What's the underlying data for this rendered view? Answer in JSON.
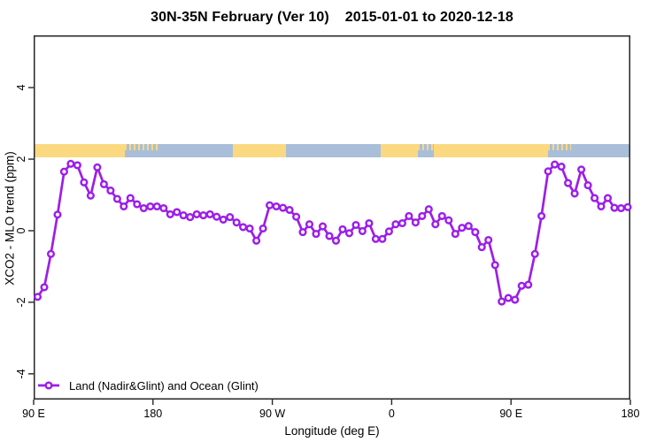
{
  "title": {
    "main": "30N-35N February (Ver 10)",
    "dates": "2015-01-01 to 2020-12-18"
  },
  "chart_data": {
    "type": "line",
    "title": "30N-35N February (Ver 10)  2015-01-01 to 2020-12-18",
    "xlabel": "Longitude (deg E)",
    "ylabel": "XCO2 - MLO trend (ppm)",
    "x_range": [
      90,
      540
    ],
    "y_range": [
      -4.72,
      5.46
    ],
    "grid": false,
    "x_ticks": [
      {
        "value": 90,
        "label": "90 E"
      },
      {
        "value": 180,
        "label": "180"
      },
      {
        "value": 270,
        "label": "90 W"
      },
      {
        "value": 360,
        "label": "0"
      },
      {
        "value": 450,
        "label": "90 E"
      },
      {
        "value": 540,
        "label": "180"
      }
    ],
    "y_ticks": [
      {
        "value": 4,
        "label": "4"
      },
      {
        "value": 2,
        "label": "2"
      },
      {
        "value": 0,
        "label": "0"
      },
      {
        "value": -2,
        "label": "-2"
      },
      {
        "value": -4,
        "label": "-4"
      }
    ],
    "legend": {
      "position": "bottom-left",
      "label": "Land (Nadir&Glint) and Ocean (Glint)"
    },
    "series": [
      {
        "name": "Land (Nadir&Glint) and Ocean (Glint)",
        "color": "#9C1EE9",
        "marker": "open-circle",
        "x": [
          93,
          98,
          103,
          108,
          113,
          118,
          123,
          128,
          133,
          138,
          143,
          148,
          153,
          158,
          163,
          168,
          173,
          178,
          183,
          188,
          193,
          198,
          203,
          208,
          213,
          218,
          223,
          228,
          233,
          238,
          243,
          248,
          253,
          258,
          263,
          268,
          273,
          278,
          283,
          288,
          293,
          298,
          303,
          308,
          313,
          318,
          323,
          328,
          333,
          338,
          343,
          348,
          353,
          358,
          363,
          368,
          373,
          378,
          383,
          388,
          393,
          398,
          403,
          408,
          413,
          418,
          423,
          428,
          433,
          438,
          443,
          448,
          453,
          458,
          463,
          468,
          473,
          478,
          483,
          488,
          493,
          498,
          503,
          508,
          513,
          518,
          523,
          528,
          533,
          538
        ],
        "y": [
          -1.85,
          -1.58,
          -0.65,
          0.45,
          1.65,
          1.87,
          1.83,
          1.35,
          0.98,
          1.77,
          1.3,
          1.12,
          0.89,
          0.68,
          0.91,
          0.74,
          0.63,
          0.68,
          0.68,
          0.63,
          0.46,
          0.52,
          0.43,
          0.38,
          0.46,
          0.43,
          0.46,
          0.39,
          0.31,
          0.38,
          0.23,
          0.1,
          0.06,
          -0.28,
          0.06,
          0.71,
          0.68,
          0.64,
          0.58,
          0.39,
          -0.04,
          0.18,
          -0.09,
          0.12,
          -0.15,
          -0.28,
          0.04,
          -0.07,
          0.16,
          -0.01,
          0.21,
          -0.23,
          -0.23,
          -0.02,
          0.18,
          0.21,
          0.41,
          0.23,
          0.41,
          0.6,
          0.18,
          0.41,
          0.29,
          -0.09,
          0.08,
          0.13,
          -0.04,
          -0.46,
          -0.26,
          -0.96,
          -1.98,
          -1.88,
          -1.93,
          -1.54,
          -1.51,
          -0.65,
          0.41,
          1.66,
          1.85,
          1.79,
          1.33,
          1.04,
          1.71,
          1.27,
          0.91,
          0.68,
          0.91,
          0.64,
          0.63,
          0.66
        ]
      }
    ],
    "map_band": {
      "description": "land-ocean strip near y=2.2",
      "ocean_color": "#A9BED9",
      "land_color": "#FBD980",
      "segments": [
        {
          "x0": 90,
          "x1": 159,
          "type": "land"
        },
        {
          "x0": 159,
          "x1": 185,
          "type": "mixed"
        },
        {
          "x0": 185,
          "x1": 240,
          "type": "ocean"
        },
        {
          "x0": 240,
          "x1": 280,
          "type": "land"
        },
        {
          "x0": 280,
          "x1": 352,
          "type": "ocean"
        },
        {
          "x0": 352,
          "x1": 380,
          "type": "land"
        },
        {
          "x0": 380,
          "x1": 392,
          "type": "mixed"
        },
        {
          "x0": 392,
          "x1": 478,
          "type": "land"
        },
        {
          "x0": 478,
          "x1": 495,
          "type": "mixed"
        },
        {
          "x0": 495,
          "x1": 540,
          "type": "ocean"
        }
      ]
    },
    "frame_color": "#262626"
  }
}
